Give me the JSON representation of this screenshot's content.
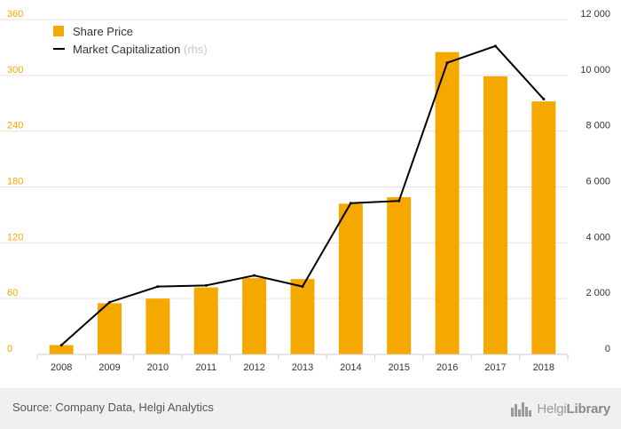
{
  "chart_data": {
    "type": "bar",
    "categories": [
      "2008",
      "2009",
      "2010",
      "2011",
      "2012",
      "2013",
      "2014",
      "2015",
      "2016",
      "2017",
      "2018"
    ],
    "series": [
      {
        "name": "Share Price",
        "kind": "bar",
        "axis": "left",
        "color": "#f5a800",
        "values": [
          10,
          55,
          60,
          72,
          82,
          81,
          162,
          169,
          325,
          299,
          272
        ]
      },
      {
        "name": "Market Capitalization",
        "legend_suffix": "(rhs)",
        "kind": "line",
        "axis": "right",
        "color": "#000000",
        "values": [
          330,
          1870,
          2430,
          2470,
          2830,
          2430,
          5420,
          5500,
          10450,
          11050,
          9150
        ]
      }
    ],
    "y_left": {
      "ticks": [
        "0",
        "60",
        "120",
        "180",
        "240",
        "300",
        "360"
      ],
      "range": [
        0,
        360
      ],
      "color": "#f5a800"
    },
    "y_right": {
      "ticks": [
        "0",
        "2 000",
        "4 000",
        "6 000",
        "8 000",
        "10 000",
        "12 000"
      ],
      "range": [
        0,
        12000
      ]
    },
    "grid": true,
    "legend_position": "top-left"
  },
  "footer": {
    "source": "Source: Company Data, Helgi Analytics",
    "logo_light": "Helgi",
    "logo_bold": "Library"
  }
}
